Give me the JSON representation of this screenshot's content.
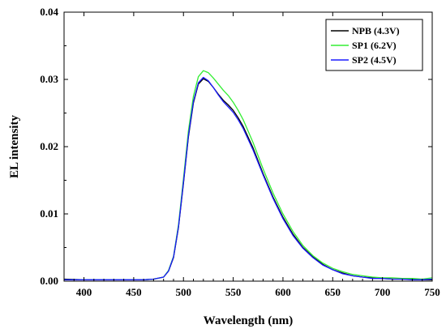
{
  "chart_data": {
    "type": "line",
    "title": "",
    "xlabel": "Wavelength (nm)",
    "ylabel": "EL intensity",
    "xlim": [
      380,
      750
    ],
    "ylim": [
      0.0,
      0.04
    ],
    "xticks": [
      400,
      450,
      500,
      550,
      600,
      650,
      700,
      750
    ],
    "yticks": [
      0.0,
      0.01,
      0.02,
      0.03,
      0.04
    ],
    "ytick_labels": [
      "0.00",
      "0.01",
      "0.02",
      "0.03",
      "0.04"
    ],
    "grid": false,
    "legend_position": "top-right",
    "x": [
      380,
      400,
      420,
      440,
      460,
      470,
      480,
      485,
      490,
      495,
      500,
      505,
      510,
      515,
      520,
      525,
      530,
      535,
      540,
      545,
      550,
      555,
      560,
      570,
      580,
      590,
      600,
      610,
      620,
      630,
      640,
      650,
      660,
      670,
      680,
      690,
      700,
      710,
      720,
      730,
      740,
      750
    ],
    "series": [
      {
        "name": "NPB (4.3V)",
        "color": "#000000",
        "values": [
          0.0003,
          0.0002,
          0.0002,
          0.0002,
          0.0002,
          0.0003,
          0.0006,
          0.0015,
          0.0035,
          0.008,
          0.0145,
          0.0215,
          0.0265,
          0.0293,
          0.0301,
          0.0297,
          0.0288,
          0.0278,
          0.0269,
          0.0262,
          0.0254,
          0.0243,
          0.023,
          0.0198,
          0.016,
          0.0125,
          0.0095,
          0.007,
          0.005,
          0.0036,
          0.0025,
          0.0017,
          0.0012,
          0.0008,
          0.0006,
          0.0005,
          0.0004,
          0.0003,
          0.0003,
          0.0003,
          0.0002,
          0.0002
        ]
      },
      {
        "name": "SP1 (6.2V)",
        "color": "#33ee33",
        "values": [
          0.0002,
          0.0002,
          0.0002,
          0.0002,
          0.0002,
          0.0003,
          0.0006,
          0.0016,
          0.0037,
          0.0084,
          0.0152,
          0.0224,
          0.0275,
          0.0304,
          0.0313,
          0.031,
          0.0302,
          0.0293,
          0.0284,
          0.0276,
          0.0266,
          0.0254,
          0.024,
          0.0206,
          0.0167,
          0.0131,
          0.01,
          0.0074,
          0.0053,
          0.0038,
          0.0027,
          0.0019,
          0.0014,
          0.001,
          0.0008,
          0.0006,
          0.0005,
          0.0005,
          0.0004,
          0.0004,
          0.0003,
          0.0005
        ]
      },
      {
        "name": "SP2 (4.5V)",
        "color": "#1a1aff",
        "values": [
          0.0002,
          0.0002,
          0.0002,
          0.0002,
          0.0002,
          0.0003,
          0.0006,
          0.0015,
          0.0036,
          0.0081,
          0.0147,
          0.0217,
          0.0267,
          0.0295,
          0.0303,
          0.0298,
          0.0288,
          0.0277,
          0.0267,
          0.0259,
          0.0251,
          0.024,
          0.0227,
          0.0195,
          0.0158,
          0.0123,
          0.0093,
          0.0068,
          0.0049,
          0.0035,
          0.0024,
          0.0017,
          0.0011,
          0.0008,
          0.0006,
          0.0004,
          0.0004,
          0.0003,
          0.0003,
          0.0002,
          0.0002,
          0.0003
        ]
      }
    ]
  }
}
